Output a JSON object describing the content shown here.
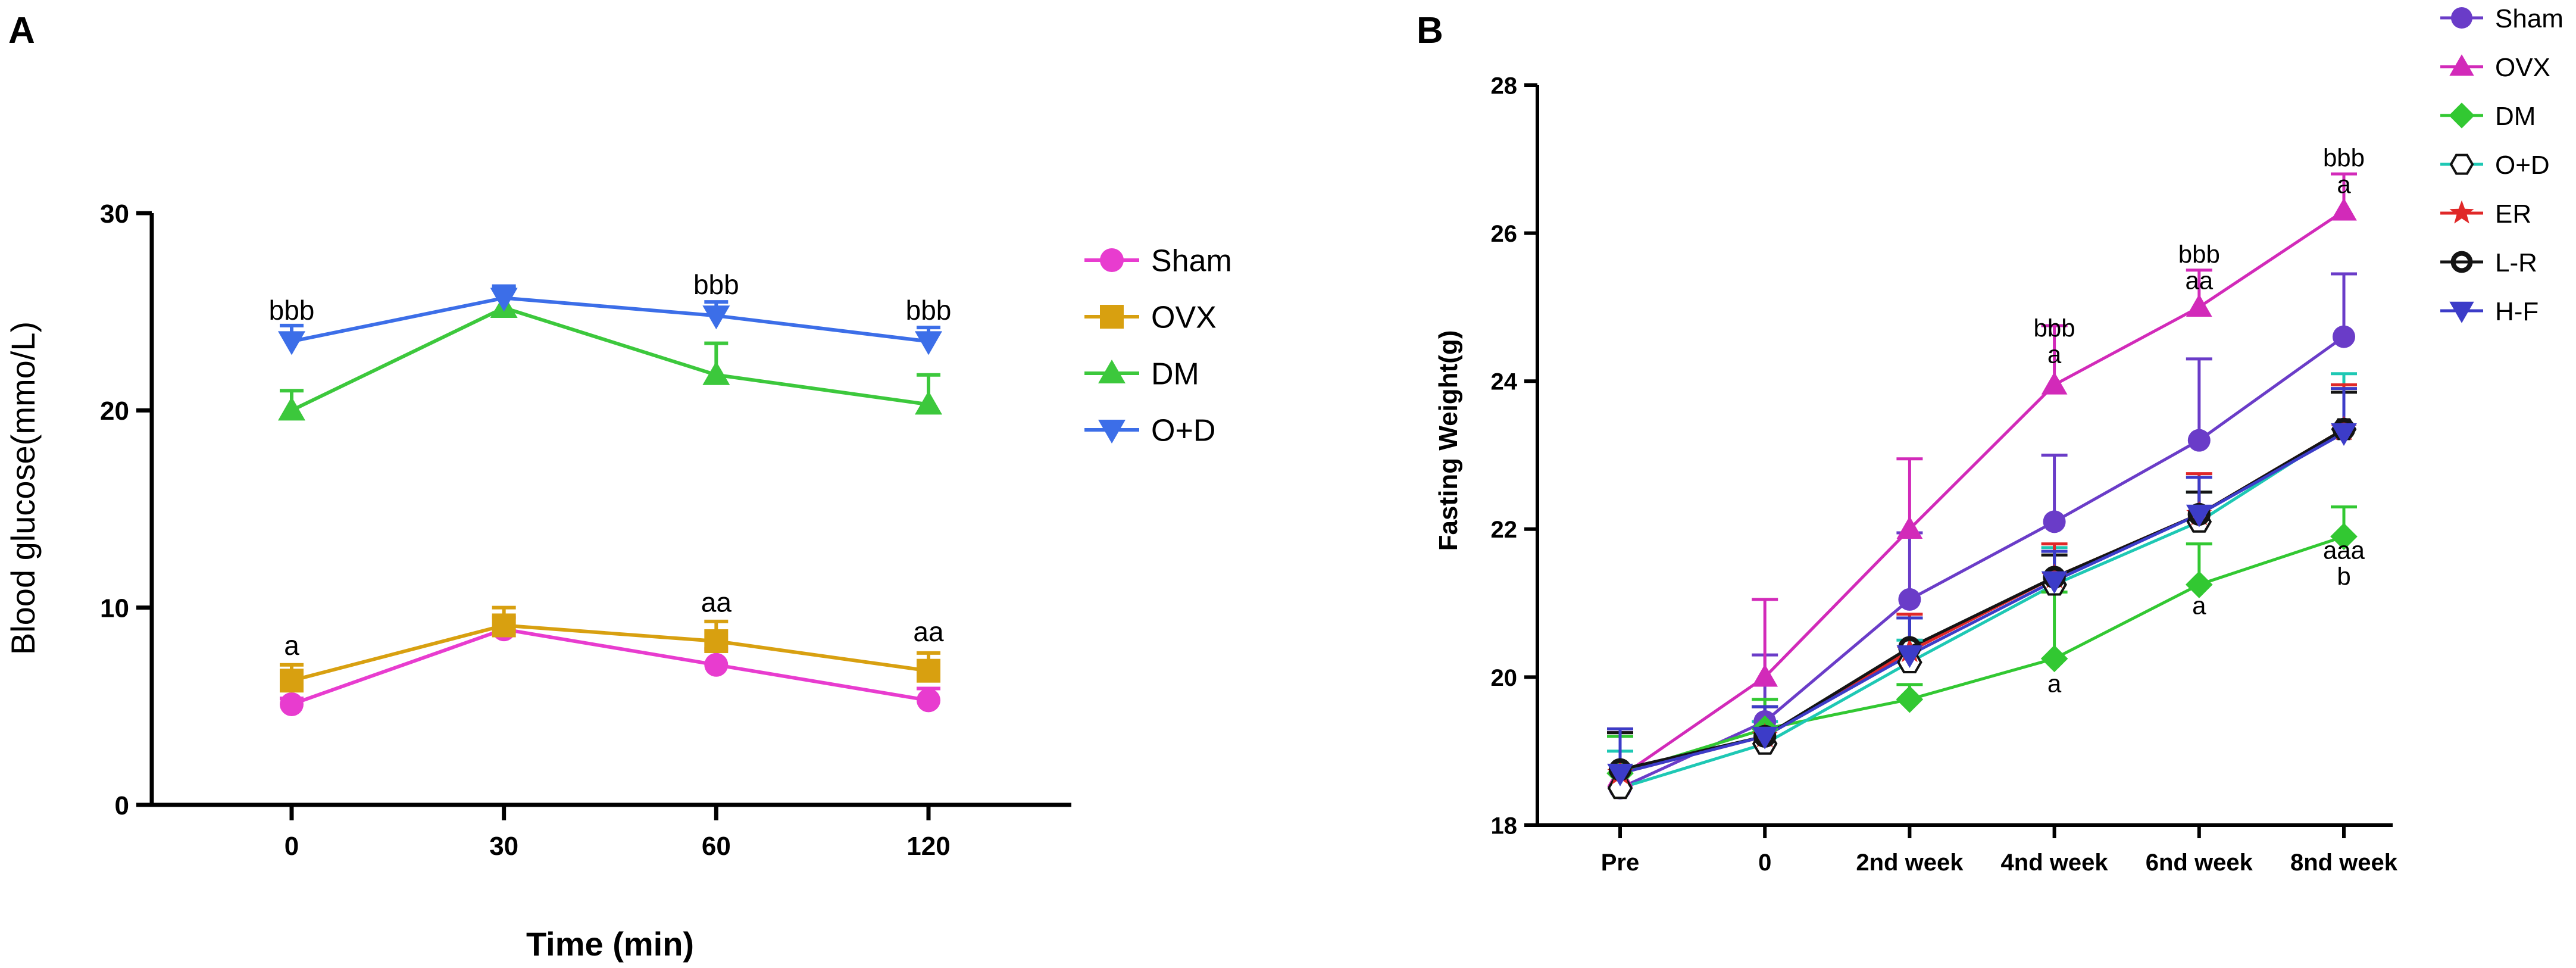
{
  "chart_data": [
    {
      "type": "line",
      "panel_label": "A",
      "xlabel": "Time (min)",
      "ylabel": "Blood glucose(mmo/L)",
      "categories": [
        "0",
        "30",
        "60",
        "120"
      ],
      "ylim": [
        0,
        30
      ],
      "yticks": [
        "0",
        "10",
        "20",
        "30"
      ],
      "series": [
        {
          "name": "Sham",
          "color": "#e83ccf",
          "marker": "circle",
          "values": [
            5.1,
            8.9,
            7.1,
            5.3
          ],
          "err": [
            0.3,
            0.6,
            0.8,
            0.6
          ]
        },
        {
          "name": "OVX",
          "color": "#d8a010",
          "marker": "square",
          "values": [
            6.3,
            9.1,
            8.3,
            6.8
          ],
          "err": [
            0.8,
            0.9,
            1.0,
            0.9
          ]
        },
        {
          "name": "DM",
          "color": "#3cc83c",
          "marker": "triangle-up",
          "values": [
            20.0,
            25.2,
            21.8,
            20.3
          ],
          "err": [
            1.0,
            1.0,
            1.6,
            1.5
          ]
        },
        {
          "name": "O+D",
          "color": "#3c6ee8",
          "marker": "triangle-down",
          "values": [
            23.5,
            25.7,
            24.8,
            23.5
          ],
          "err": [
            0.8,
            0.6,
            0.7,
            0.7
          ]
        }
      ],
      "annotations": [
        {
          "category": "0",
          "y": 24.6,
          "lines": [
            "bbb"
          ]
        },
        {
          "category": "60",
          "y": 25.9,
          "lines": [
            "bbb"
          ]
        },
        {
          "category": "120",
          "y": 24.6,
          "lines": [
            "bbb"
          ]
        },
        {
          "category": "0",
          "y": 7.6,
          "lines": [
            "a"
          ]
        },
        {
          "category": "60",
          "y": 9.8,
          "lines": [
            "aa"
          ]
        },
        {
          "category": "120",
          "y": 8.3,
          "lines": [
            "aa"
          ]
        }
      ]
    },
    {
      "type": "line",
      "panel_label": "B",
      "xlabel": "",
      "ylabel": "Fasting Weight(g)",
      "categories": [
        "Pre",
        "0",
        "2nd week",
        "4nd week",
        "6nd week",
        "8nd week"
      ],
      "ylim": [
        18,
        28
      ],
      "yticks": [
        "18",
        "20",
        "22",
        "24",
        "26",
        "28"
      ],
      "series": [
        {
          "name": "Sham",
          "color": "#6a3cc8",
          "marker": "circle",
          "values": [
            18.5,
            19.4,
            21.05,
            22.1,
            23.2,
            24.6
          ],
          "err": [
            0.7,
            0.9,
            0.9,
            0.9,
            1.1,
            0.85
          ]
        },
        {
          "name": "OVX",
          "color": "#d22ab9",
          "marker": "triangle-up",
          "values": [
            18.65,
            20.0,
            22.0,
            23.95,
            25.0,
            26.3
          ],
          "err": [
            0.6,
            1.05,
            0.95,
            0.8,
            0.5,
            0.5
          ]
        },
        {
          "name": "DM",
          "color": "#32c832",
          "marker": "diamond",
          "values": [
            18.7,
            19.3,
            19.7,
            20.25,
            21.25,
            21.9
          ],
          "err": [
            0.5,
            0.4,
            0.2,
            0.9,
            0.55,
            0.4
          ]
        },
        {
          "name": "O+D",
          "color": "#1ec8b4",
          "marker": "hexagon",
          "values": [
            18.5,
            19.1,
            20.2,
            21.25,
            22.1,
            23.35
          ],
          "err": [
            0.5,
            0.3,
            0.3,
            0.5,
            0.4,
            0.75
          ]
        },
        {
          "name": "ER",
          "color": "#e02828",
          "marker": "star",
          "values": [
            18.7,
            19.2,
            20.35,
            21.35,
            22.2,
            23.35
          ],
          "err": [
            0.6,
            0.4,
            0.5,
            0.45,
            0.55,
            0.6
          ]
        },
        {
          "name": "L-R",
          "color": "#141414",
          "marker": "ring",
          "values": [
            18.75,
            19.2,
            20.4,
            21.35,
            22.2,
            23.35
          ],
          "err": [
            0.5,
            0.4,
            0.4,
            0.3,
            0.3,
            0.5
          ]
        },
        {
          "name": "H-F",
          "color": "#3c3cc8",
          "marker": "triangle-down",
          "values": [
            18.7,
            19.2,
            20.3,
            21.3,
            22.2,
            23.3
          ],
          "err": [
            0.6,
            0.4,
            0.5,
            0.4,
            0.5,
            0.6
          ]
        }
      ],
      "annotations": [
        {
          "category": "4nd week",
          "y": 24.6,
          "lines": [
            "bbb",
            "a"
          ]
        },
        {
          "category": "6nd week",
          "y": 25.6,
          "lines": [
            "bbb",
            "aa"
          ]
        },
        {
          "category": "8nd week",
          "y": 26.9,
          "lines": [
            "bbb",
            "a"
          ]
        },
        {
          "category": "4nd week",
          "y": 19.8,
          "lines": [
            "a"
          ]
        },
        {
          "category": "6nd week",
          "y": 20.85,
          "lines": [
            "a"
          ]
        },
        {
          "category": "8nd week",
          "y": 21.6,
          "lines": [
            "aaa",
            "b"
          ]
        }
      ]
    }
  ]
}
